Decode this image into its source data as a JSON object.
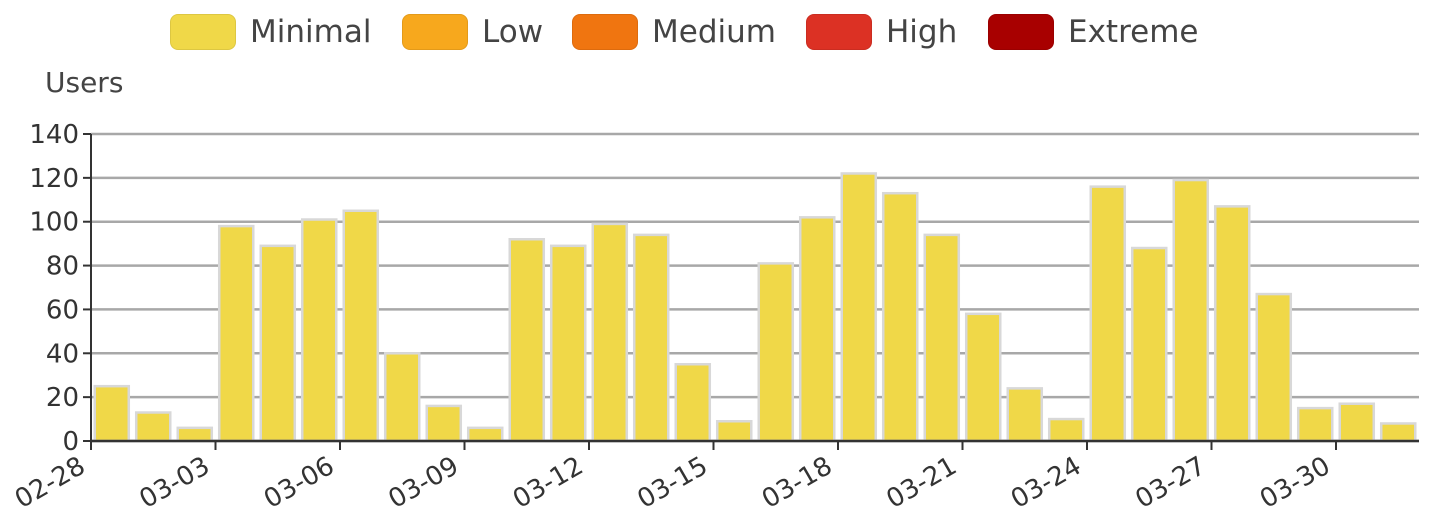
{
  "legend": [
    {
      "label": "Minimal",
      "color": "#f0d848"
    },
    {
      "label": "Low",
      "color": "#f7a81d"
    },
    {
      "label": "Medium",
      "color": "#f07510"
    },
    {
      "label": "High",
      "color": "#dc3124"
    },
    {
      "label": "Extreme",
      "color": "#a80000"
    }
  ],
  "chart_data": {
    "type": "bar",
    "ylabel": "Users",
    "xlabel": "",
    "ylim": [
      0,
      140
    ],
    "yticks": [
      0,
      20,
      40,
      60,
      80,
      100,
      120,
      140
    ],
    "xtick_labels": [
      "02-28",
      "03-03",
      "03-06",
      "03-09",
      "03-12",
      "03-15",
      "03-18",
      "03-21",
      "03-24",
      "03-27",
      "03-30"
    ],
    "grid": true,
    "legend_position": "top",
    "categories": [
      "02-28",
      "03-01",
      "03-02",
      "03-03",
      "03-04",
      "03-05",
      "03-06",
      "03-07",
      "03-08",
      "03-09",
      "03-10",
      "03-11",
      "03-12",
      "03-13",
      "03-14",
      "03-15",
      "03-16",
      "03-17",
      "03-18",
      "03-19",
      "03-20",
      "03-21",
      "03-22",
      "03-23",
      "03-24",
      "03-25",
      "03-26",
      "03-27",
      "03-28",
      "03-29",
      "03-30",
      "03-31"
    ],
    "series": [
      {
        "name": "Minimal",
        "color": "#f0d848",
        "values": [
          25,
          13,
          6,
          98,
          89,
          101,
          105,
          40,
          16,
          6,
          92,
          89,
          99,
          94,
          35,
          9,
          81,
          102,
          122,
          113,
          94,
          58,
          24,
          10,
          116,
          88,
          119,
          107,
          67,
          15,
          17,
          8
        ]
      }
    ]
  }
}
